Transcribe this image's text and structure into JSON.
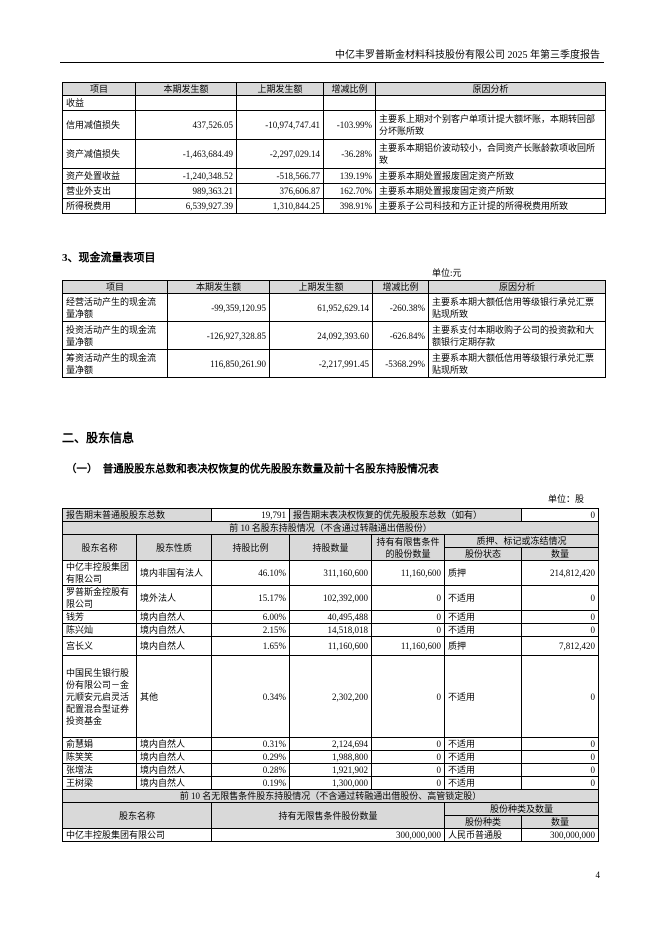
{
  "header": {
    "title": "中亿丰罗普斯金材料科技股份有限公司 2025 年第三季度报告"
  },
  "income_table": {
    "headers": [
      "项目",
      "本期发生额",
      "上期发生额",
      "增减比例",
      "原因分析"
    ],
    "rows": [
      [
        "收益",
        "",
        "",
        "",
        ""
      ],
      [
        "信用减值损失",
        "437,526.05",
        "-10,974,747.41",
        "-103.99%",
        "主要系上期对个别客户单项计提大额坏账，本期转回部分坏账所致"
      ],
      [
        "资产减值损失",
        "-1,463,684.49",
        "-2,297,029.14",
        "-36.28%",
        "主要系本期铝价波动较小，合同资产长账龄款项收回所致"
      ],
      [
        "资产处置收益",
        "-1,240,348.52",
        "-518,566.77",
        "139.19%",
        "主要系本期处置报废固定资产所致"
      ],
      [
        "营业外支出",
        "989,363.21",
        "376,606.87",
        "162.70%",
        "主要系本期处置报废固定资产所致"
      ],
      [
        "所得税费用",
        "6,539,927.39",
        "1,310,844.25",
        "398.91%",
        "主要系子公司科技和方正计提的所得税费用所致"
      ]
    ]
  },
  "cashflow": {
    "title": "3、现金流量表项目",
    "unit": "单位:元",
    "headers": [
      "项目",
      "本期发生额",
      "上期发生额",
      "增减比例",
      "原因分析"
    ],
    "rows": [
      [
        "经营活动产生的现金流量净额",
        "-99,359,120.95",
        "61,952,629.14",
        "-260.38%",
        "主要系本期大额低信用等级银行承兑汇票贴现所致"
      ],
      [
        "投资活动产生的现金流量净额",
        "-126,927,328.85",
        "24,092,393.60",
        "-626.84%",
        "主要系支付本期收购子公司的投资款和大额银行定期存款"
      ],
      [
        "筹资活动产生的现金流量净额",
        "116,850,261.90",
        "-2,217,991.45",
        "-5368.29%",
        "主要系本期大额低信用等级银行承兑汇票贴现所致"
      ]
    ]
  },
  "section2": {
    "title": "二、股东信息",
    "subtitle": "（一）　普通股股东总数和表决权恢复的优先股股东数量及前十名股东持股情况表",
    "unit": "单位：股"
  },
  "shareholders": {
    "total_label": "报告期末普通股股东总数",
    "total_value": "19,791",
    "pref_label": "报告期末表决权恢复的优先股股东总数（如有）",
    "pref_value": "0",
    "top10_title": "前 10 名股东持股情况（不含通过转融通出借股份）",
    "headers": [
      "股东名称",
      "股东性质",
      "持股比例",
      "持股数量",
      "持有有限售条件的股份数量",
      "质押、标记或冻结情况",
      "股份状态",
      "数量"
    ],
    "rows": [
      [
        "中亿丰控股集团有限公司",
        "境内非国有法人",
        "46.10%",
        "311,160,600",
        "11,160,600",
        "质押",
        "214,812,420"
      ],
      [
        "罗普斯金控股有限公司",
        "境外法人",
        "15.17%",
        "102,392,000",
        "0",
        "不适用",
        "0"
      ],
      [
        "钱芳",
        "境内自然人",
        "6.00%",
        "40,495,488",
        "0",
        "不适用",
        "0"
      ],
      [
        "陈兴灿",
        "境内自然人",
        "2.15%",
        "14,518,018",
        "0",
        "不适用",
        "0"
      ],
      [
        "宫长义",
        "境内自然人",
        "1.65%",
        "11,160,600",
        "11,160,600",
        "质押",
        "7,812,420"
      ],
      [
        "中国民生银行股份有限公司－金元顺安元启灵活配置混合型证券投资基金",
        "其他",
        "0.34%",
        "2,302,200",
        "0",
        "不适用",
        "0"
      ],
      [
        "俞慧娟",
        "境内自然人",
        "0.31%",
        "2,124,694",
        "0",
        "不适用",
        "0"
      ],
      [
        "陈笑笑",
        "境内自然人",
        "0.29%",
        "1,988,800",
        "0",
        "不适用",
        "0"
      ],
      [
        "张增法",
        "境内自然人",
        "0.28%",
        "1,921,902",
        "0",
        "不适用",
        "0"
      ],
      [
        "王树梁",
        "境内自然人",
        "0.19%",
        "1,300,000",
        "0",
        "不适用",
        "0"
      ]
    ],
    "unrestricted_title": "前 10 名无限售条件股东持股情况（不含通过转融通出借股份、高管锁定股）",
    "unrestricted_headers": [
      "股东名称",
      "持有无限售条件股份数量",
      "股份种类及数量",
      "股份种类",
      "数量"
    ],
    "unrestricted_rows": [
      [
        "中亿丰控股集团有限公司",
        "300,000,000",
        "人民币普通股",
        "300,000,000"
      ]
    ]
  },
  "page_number": "4"
}
